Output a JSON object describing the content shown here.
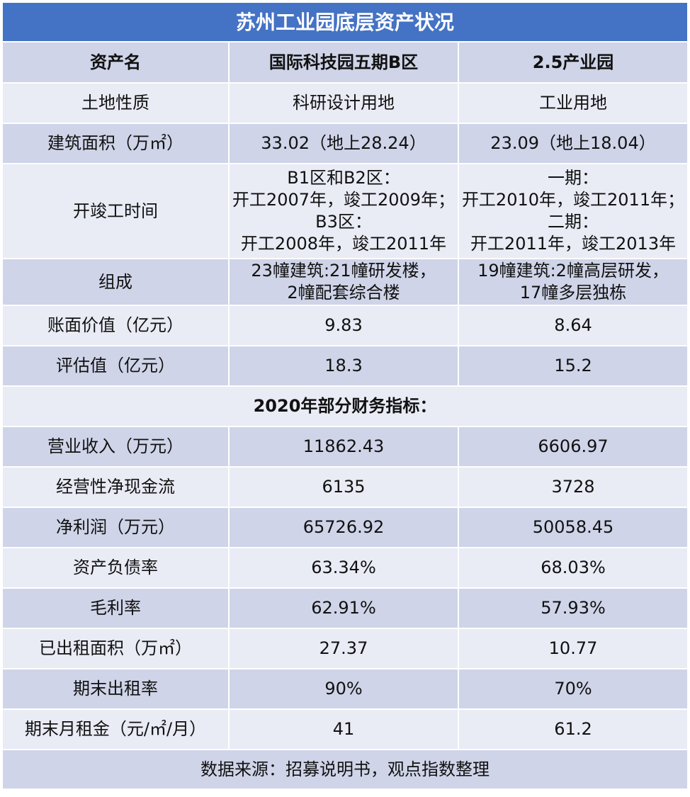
{
  "title": "苏州工业园底层资产状况",
  "header": {
    "col1": "资产名",
    "col2": "国际科技园五期B区",
    "col3": "2.5产业园"
  },
  "rows_top": [
    {
      "label": "土地性质",
      "a": "科研设计用地",
      "b": "工业用地"
    },
    {
      "label": "建筑面积（万㎡）",
      "a": "33.02（地上28.24）",
      "b": "23.09（地上18.04）"
    }
  ],
  "construction": {
    "label": "开竣工时间",
    "a": [
      "B1区和B2区：",
      "开工2007年，竣工2009年；",
      "B3区：",
      "开工2008年，竣工2011年"
    ],
    "b": [
      "一期：",
      "开工2010年，竣工2011年；",
      "二期：",
      "开工2011年，竣工2013年"
    ]
  },
  "composition": {
    "label": "组成",
    "a": [
      "23幢建筑:21幢研发楼，",
      "2幢配套综合楼"
    ],
    "b": [
      "19幢建筑:2幢高层研发，",
      "17幢多层独栋"
    ]
  },
  "rows_value": [
    {
      "label": "账面价值（亿元）",
      "a": "9.83",
      "b": "8.64"
    },
    {
      "label": "评估值（亿元）",
      "a": "18.3",
      "b": "15.2"
    }
  ],
  "section_title": "2020年部分财务指标：",
  "rows_fin": [
    {
      "label": "营业收入（万元）",
      "a": "11862.43",
      "b": "6606.97"
    },
    {
      "label": "经营性净现金流",
      "a": "6135",
      "b": "3728"
    },
    {
      "label": "净利润（万元）",
      "a": "65726.92",
      "b": "50058.45"
    },
    {
      "label": "资产负债率",
      "a": "63.34%",
      "b": "68.03%"
    },
    {
      "label": "毛利率",
      "a": "62.91%",
      "b": "57.93%"
    },
    {
      "label": "已出租面积（万㎡）",
      "a": "27.37",
      "b": "10.77"
    },
    {
      "label": "期末出租率",
      "a": "90%",
      "b": "70%"
    },
    {
      "label": "期末月租金（元/㎡/月）",
      "a": "41",
      "b": "61.2"
    }
  ],
  "source": "数据来源：招募说明书，观点指数整理"
}
